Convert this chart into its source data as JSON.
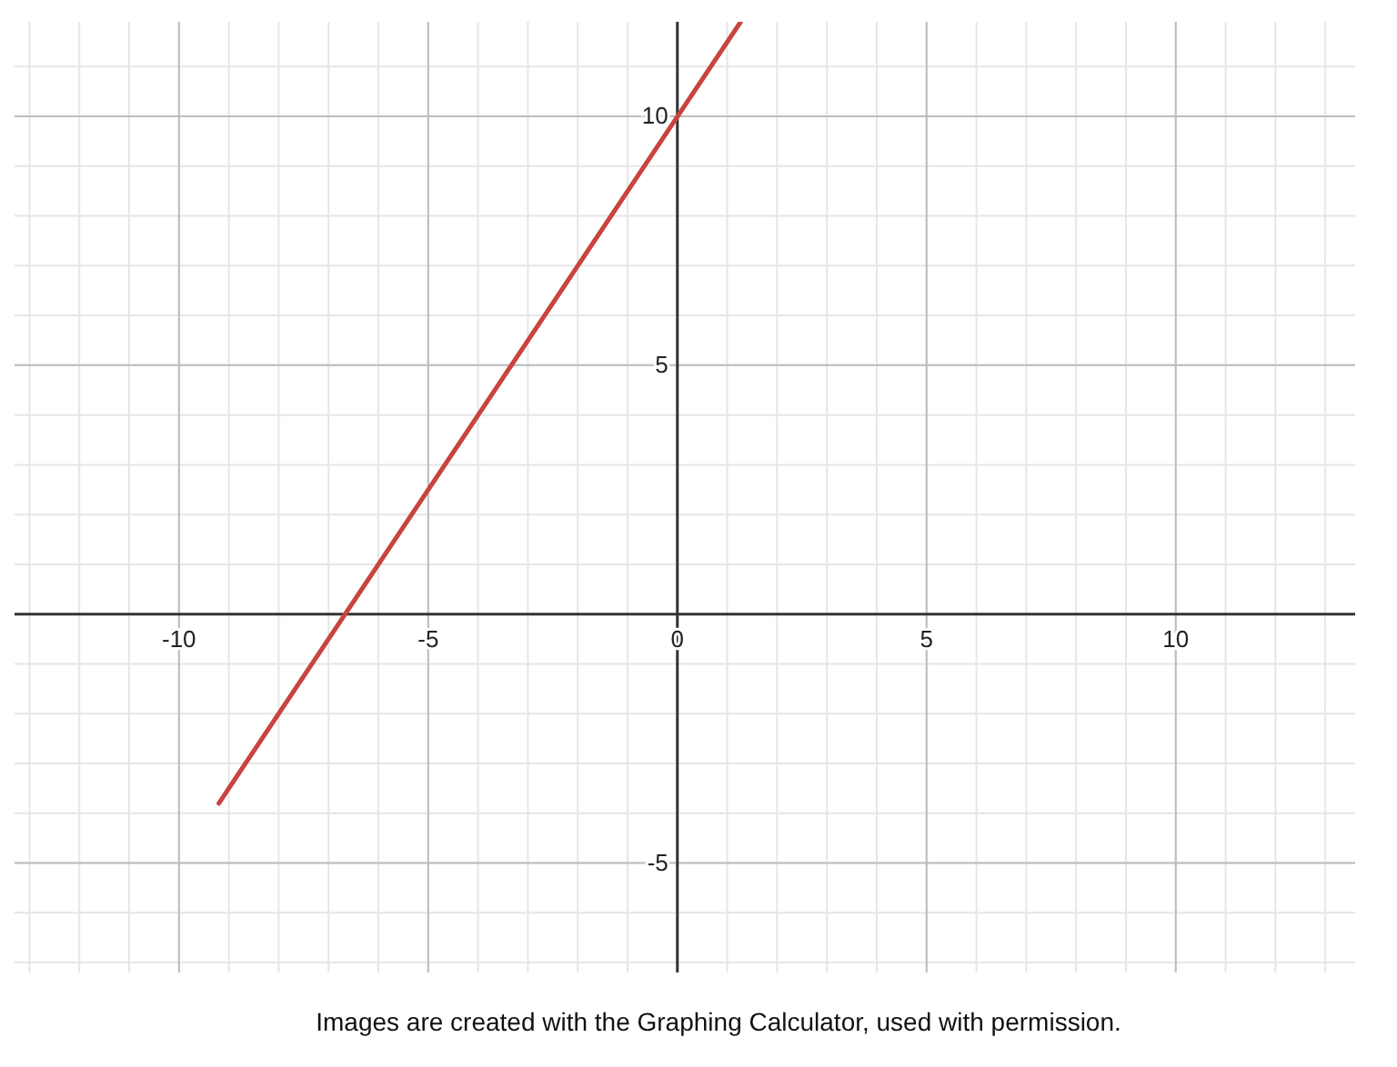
{
  "chart_data": {
    "type": "line",
    "annotations": [
      "Images are created with the Graphing Calculator, used with permission."
    ],
    "series": [
      {
        "color": "#c74440",
        "x": [
          -9.2,
          1.27
        ],
        "values": [
          -3.8,
          11.9
        ]
      }
    ],
    "xlim": [
      -13.3,
      13.6
    ],
    "ylim": [
      -7.2,
      11.9
    ],
    "xticks": [
      -10,
      -5,
      0,
      5,
      10
    ],
    "yticks": [
      -5,
      5,
      10
    ],
    "grid": true,
    "marker": "none",
    "line_style": "solid"
  }
}
